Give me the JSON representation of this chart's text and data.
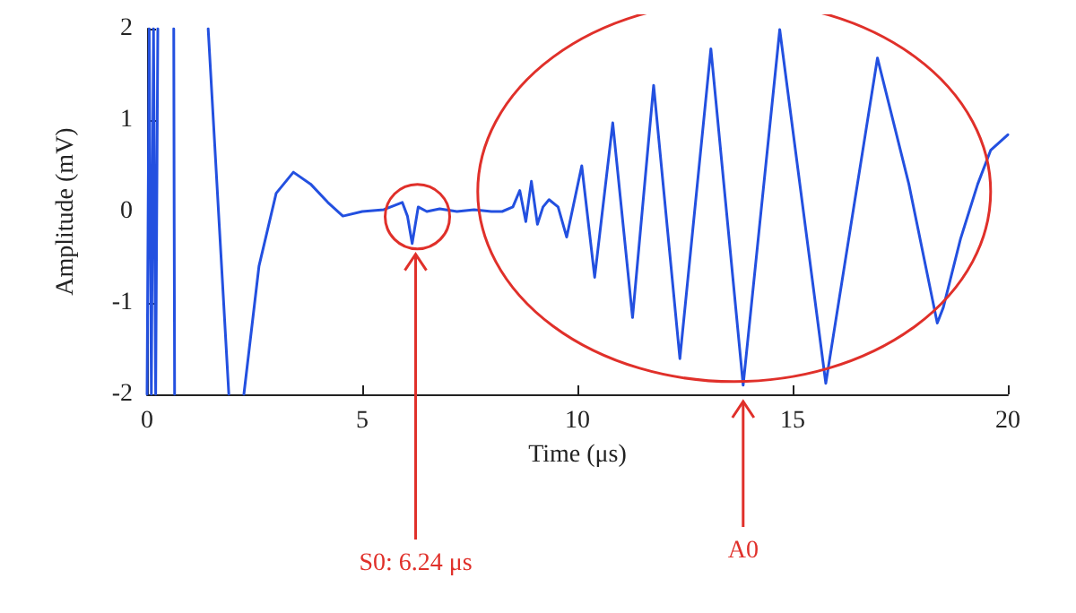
{
  "chart_data": {
    "type": "line",
    "xlabel": "Time (μs)",
    "ylabel": "Amplitude (mV)",
    "x": [
      0,
      0.05,
      0.1,
      0.15,
      0.2,
      0.25,
      0.4,
      0.62,
      0.64,
      1.0,
      1.42,
      1.9,
      2.1,
      2.25,
      2.6,
      3.0,
      3.4,
      3.8,
      4.2,
      4.55,
      5.0,
      5.5,
      5.93,
      6.05,
      6.16,
      6.3,
      6.5,
      6.8,
      7.2,
      7.6,
      8.0,
      8.25,
      8.5,
      8.66,
      8.8,
      8.93,
      9.07,
      9.2,
      9.34,
      9.55,
      9.75,
      10.1,
      10.4,
      10.82,
      11.28,
      11.77,
      12.38,
      13.1,
      13.85,
      14.7,
      15.77,
      16.97,
      17.7,
      18.36,
      18.5,
      18.9,
      19.3,
      19.6,
      20
    ],
    "series": [
      {
        "color": "#2350e0",
        "values": [
          -2,
          2,
          -2,
          2,
          -2,
          2,
          null,
          2,
          -2,
          null,
          2,
          -2,
          null,
          -2,
          -0.6,
          0.2,
          0.43,
          0.3,
          0.1,
          -0.05,
          0,
          0.02,
          0.1,
          -0.05,
          -0.35,
          0.05,
          0,
          0.03,
          0,
          0.02,
          0,
          0,
          0.05,
          0.23,
          -0.11,
          0.33,
          -0.14,
          0.05,
          0.13,
          0.05,
          -0.28,
          0.5,
          -0.72,
          0.97,
          -1.16,
          1.38,
          -1.61,
          1.78,
          -1.9,
          1.99,
          -1.88,
          1.68,
          0.3,
          -1.22,
          -1.05,
          -0.3,
          0.3,
          0.67,
          0.84
        ]
      }
    ],
    "xlim": [
      0,
      20
    ],
    "xticks": [
      0,
      5,
      10,
      15,
      20
    ],
    "ylim": [
      -2,
      2
    ],
    "yticks": [
      -2,
      -1,
      0,
      1,
      2
    ],
    "grid": false,
    "marker": "none",
    "line_style": "solid",
    "annotations": [
      {
        "text": "S0: 6.24 μs",
        "x": 6.24,
        "y": -0.35
      },
      {
        "text": "A0",
        "x": 13.85,
        "y": -1.9
      }
    ]
  }
}
